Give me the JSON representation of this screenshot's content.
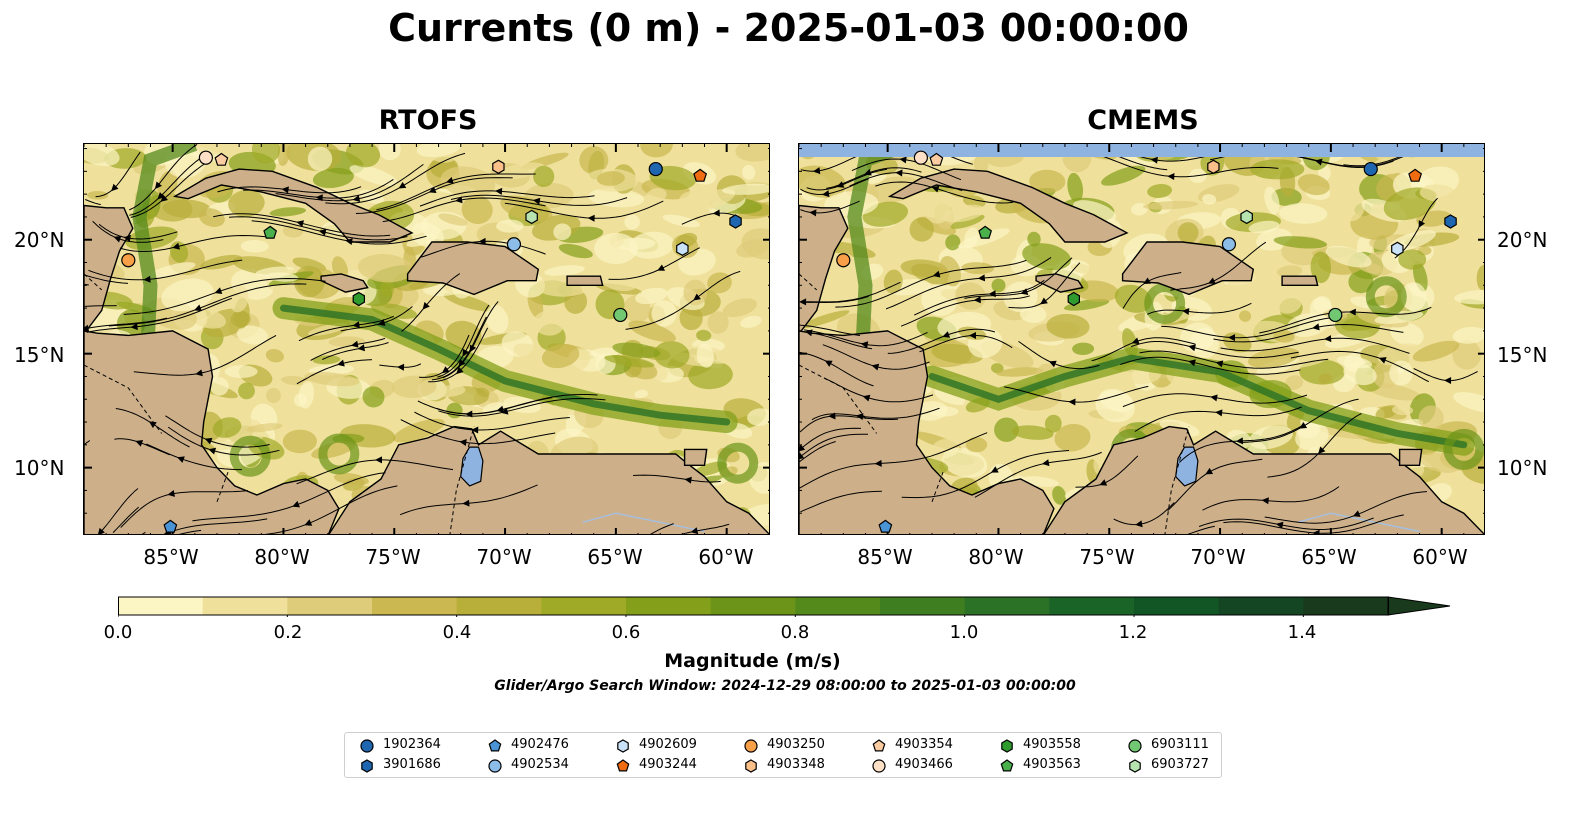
{
  "title": "Currents (0 m) - 2025-01-03 00:00:00",
  "panels": [
    {
      "title": "RTOFS"
    },
    {
      "title": "CMEMS"
    }
  ],
  "axes": {
    "lat_labels": [
      "20°N",
      "15°N",
      "10°N"
    ],
    "lon_labels": [
      "85°W",
      "80°W",
      "75°W",
      "70°W",
      "65°W",
      "60°W"
    ],
    "lon_range": [
      -89,
      -58
    ],
    "lat_range": [
      7,
      24.2
    ]
  },
  "colorbar": {
    "label": "Magnitude (m/s)",
    "ticks": [
      "0.0",
      "0.2",
      "0.4",
      "0.6",
      "0.8",
      "1.0",
      "1.2",
      "1.4"
    ],
    "range": [
      0,
      1.5
    ],
    "extend": "max",
    "colors": [
      "#fcf5c4",
      "#efe19c",
      "#dfcc7a",
      "#cbb850",
      "#b8ae3a",
      "#9faa26",
      "#84a01a",
      "#6b9418",
      "#548a1c",
      "#3f7e20",
      "#2b7226",
      "#1b6428",
      "#125626",
      "#154624",
      "#1a3a1e"
    ]
  },
  "subtitle": "Glider/Argo Search Window: 2024-12-29 08:00:00 to 2025-01-03 00:00:00",
  "colors": {
    "land": "#cdb08a",
    "water": "#8fb3e0",
    "river": "#a6bfe0"
  },
  "legend": [
    {
      "id": "1902364",
      "marker": "circle",
      "color": "#1f66b0"
    },
    {
      "id": "3901686",
      "marker": "hexagon",
      "color": "#1f66b0"
    },
    {
      "id": "4902476",
      "marker": "pentagon",
      "color": "#4a94d6"
    },
    {
      "id": "4902534",
      "marker": "circle",
      "color": "#8bbde8"
    },
    {
      "id": "4902609",
      "marker": "hexagon",
      "color": "#c9e2f7"
    },
    {
      "id": "4903244",
      "marker": "pentagon",
      "color": "#ef6c12"
    },
    {
      "id": "4903250",
      "marker": "circle",
      "color": "#f8a048"
    },
    {
      "id": "4903348",
      "marker": "hexagon",
      "color": "#fbc08a"
    },
    {
      "id": "4903354",
      "marker": "pentagon",
      "color": "#fbcca1"
    },
    {
      "id": "4903466",
      "marker": "circle",
      "color": "#fde0c6"
    },
    {
      "id": "4903558",
      "marker": "hexagon",
      "color": "#2f9a2e"
    },
    {
      "id": "4903563",
      "marker": "pentagon",
      "color": "#49b04c"
    },
    {
      "id": "6903111",
      "marker": "circle",
      "color": "#72c872"
    },
    {
      "id": "6903727",
      "marker": "hexagon",
      "color": "#b6e3b0"
    }
  ],
  "floats": [
    {
      "id": "1902364",
      "rtofs": [
        -63.2,
        23.1
      ],
      "cmems": [
        -63.2,
        23.1
      ]
    },
    {
      "id": "3901686",
      "rtofs": [
        -59.6,
        20.8
      ],
      "cmems": [
        -59.6,
        20.8
      ]
    },
    {
      "id": "4902476",
      "rtofs": [
        -85.1,
        7.4
      ],
      "cmems": [
        -85.1,
        7.4
      ]
    },
    {
      "id": "4902534",
      "rtofs": [
        -69.6,
        19.8
      ],
      "cmems": [
        -69.6,
        19.8
      ]
    },
    {
      "id": "4902609",
      "rtofs": [
        -62.0,
        19.6
      ],
      "cmems": [
        -62.0,
        19.6
      ]
    },
    {
      "id": "4903244",
      "rtofs": [
        -61.2,
        22.8
      ],
      "cmems": [
        -61.2,
        22.8
      ]
    },
    {
      "id": "4903250",
      "rtofs": [
        -87.0,
        19.1
      ],
      "cmems": [
        -87.0,
        19.1
      ]
    },
    {
      "id": "4903348",
      "rtofs": [
        -70.3,
        23.2
      ],
      "cmems": [
        -70.3,
        23.2
      ]
    },
    {
      "id": "4903354",
      "rtofs": [
        -82.8,
        23.5
      ],
      "cmems": [
        -82.8,
        23.5
      ]
    },
    {
      "id": "4903466",
      "rtofs": [
        -83.5,
        23.6
      ],
      "cmems": [
        -83.5,
        23.6
      ]
    },
    {
      "id": "4903558",
      "rtofs": [
        -76.6,
        17.4
      ],
      "cmems": [
        -76.6,
        17.4
      ]
    },
    {
      "id": "4903563",
      "rtofs": [
        -80.6,
        20.3
      ],
      "cmems": [
        -80.6,
        20.3
      ]
    },
    {
      "id": "6903111",
      "rtofs": [
        -64.8,
        16.7
      ],
      "cmems": [
        -64.8,
        16.7
      ]
    },
    {
      "id": "6903727",
      "rtofs": [
        -68.8,
        21.0
      ],
      "cmems": [
        -68.8,
        21.0
      ]
    }
  ]
}
